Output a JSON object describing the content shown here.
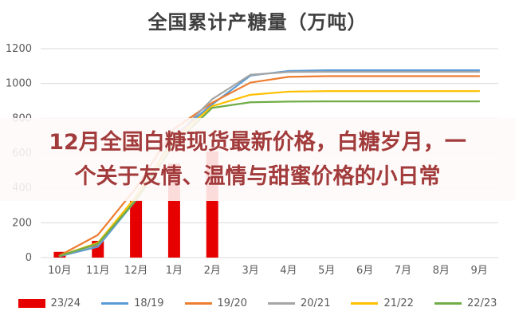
{
  "title": "全国累计产糖量（万吨）",
  "overlay": {
    "line1": "12月全国白糖现货最新价格，白糖岁月，一",
    "line2": "个关于友情、温情与甜蜜价格的小日常",
    "text_color": "#a23b3b"
  },
  "chart_data": {
    "type": "bar",
    "subtype": "combo-bar-line",
    "title": "全国累计产糖量（万吨）",
    "xlabel": "",
    "ylabel": "",
    "categories": [
      "10月",
      "11月",
      "12月",
      "1月",
      "2月",
      "3月",
      "4月",
      "5月",
      "6月",
      "7月",
      "8月",
      "9月"
    ],
    "ylim": [
      0,
      1200
    ],
    "yticks": [
      0,
      200,
      400,
      600,
      800,
      1000,
      1200
    ],
    "grid": true,
    "legend_position": "bottom",
    "bar_series": {
      "name": "23/24",
      "color": "#e60000",
      "values": [
        33,
        96,
        330,
        540,
        610,
        null,
        null,
        null,
        null,
        null,
        null,
        null
      ]
    },
    "series": [
      {
        "name": "18/19",
        "color": "#5b9bd5",
        "values": [
          8,
          62,
          330,
          700,
          880,
          1045,
          1072,
          1076,
          1076,
          1076,
          1076,
          1076
        ]
      },
      {
        "name": "19/20",
        "color": "#ed7d31",
        "values": [
          12,
          130,
          400,
          740,
          890,
          1005,
          1038,
          1042,
          1042,
          1042,
          1042,
          1042
        ]
      },
      {
        "name": "20/21",
        "color": "#a5a5a5",
        "values": [
          10,
          75,
          340,
          690,
          910,
          1050,
          1066,
          1067,
          1067,
          1067,
          1067,
          1067
        ]
      },
      {
        "name": "21/22",
        "color": "#ffc000",
        "values": [
          10,
          85,
          350,
          680,
          870,
          935,
          953,
          956,
          956,
          956,
          956,
          956
        ]
      },
      {
        "name": "22/23",
        "color": "#70ad47",
        "values": [
          10,
          80,
          330,
          650,
          860,
          892,
          896,
          897,
          897,
          897,
          897,
          897
        ]
      }
    ]
  },
  "legend": [
    {
      "label": "23/24",
      "color": "#e60000",
      "type": "bar"
    },
    {
      "label": "18/19",
      "color": "#5b9bd5",
      "type": "line"
    },
    {
      "label": "19/20",
      "color": "#ed7d31",
      "type": "line"
    },
    {
      "label": "20/21",
      "color": "#a5a5a5",
      "type": "line"
    },
    {
      "label": "21/22",
      "color": "#ffc000",
      "type": "line"
    },
    {
      "label": "22/23",
      "color": "#70ad47",
      "type": "line"
    }
  ],
  "axis_text_color": "#595959",
  "gridline_color": "#d9d9d9"
}
